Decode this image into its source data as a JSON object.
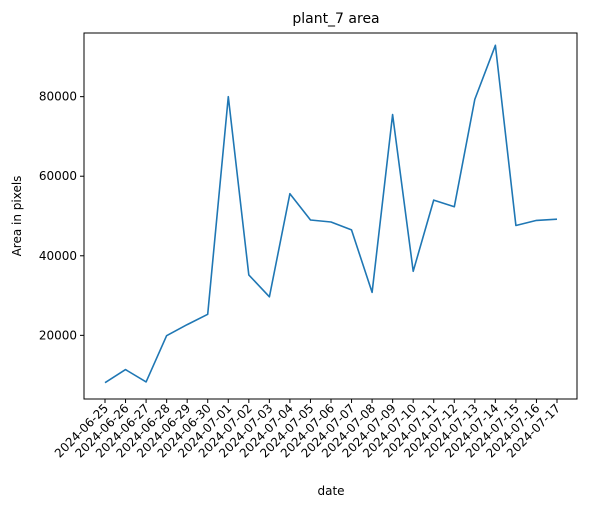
{
  "chart_data": {
    "type": "line",
    "title": "plant_7 area",
    "xlabel": "date",
    "ylabel": "Area in pixels",
    "ylim": [
      4000,
      96000
    ],
    "yticks": [
      20000,
      40000,
      60000,
      80000
    ],
    "grid": false,
    "color": "#1f77b4",
    "x": [
      "2024-06-25",
      "2024-06-26",
      "2024-06-27",
      "2024-06-28",
      "2024-06-29",
      "2024-06-30",
      "2024-07-01",
      "2024-07-02",
      "2024-07-03",
      "2024-07-04",
      "2024-07-05",
      "2024-07-06",
      "2024-07-07",
      "2024-07-08",
      "2024-07-09",
      "2024-07-10",
      "2024-07-11",
      "2024-07-12",
      "2024-07-13",
      "2024-07-14",
      "2024-07-15",
      "2024-07-16",
      "2024-07-17"
    ],
    "y": [
      8100,
      11400,
      8300,
      19900,
      22700,
      25300,
      80000,
      35200,
      29700,
      55600,
      49000,
      48500,
      46500,
      30800,
      75500,
      36100,
      54000,
      52300,
      79300,
      92900,
      47600,
      48900,
      49200
    ]
  }
}
